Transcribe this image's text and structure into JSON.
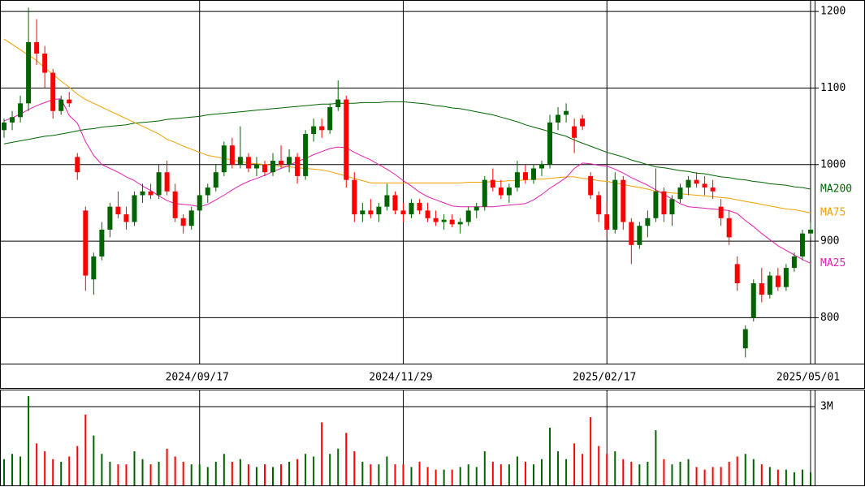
{
  "chart_data": [
    {
      "type": "candlestick",
      "categories": [
        null,
        null,
        null,
        null,
        null,
        null,
        null,
        null,
        null,
        null,
        null,
        null,
        null,
        null,
        null,
        null,
        null,
        null,
        null,
        null,
        null,
        null,
        null,
        null,
        "2024/09/17",
        null,
        null,
        null,
        null,
        null,
        null,
        null,
        null,
        null,
        null,
        null,
        null,
        null,
        null,
        null,
        null,
        null,
        null,
        null,
        null,
        null,
        null,
        null,
        null,
        "2024/11/29",
        null,
        null,
        null,
        null,
        null,
        null,
        null,
        null,
        null,
        null,
        null,
        null,
        null,
        null,
        null,
        null,
        null,
        null,
        null,
        null,
        null,
        null,
        null,
        null,
        "2025/02/17",
        null,
        null,
        null,
        null,
        null,
        null,
        null,
        null,
        null,
        null,
        null,
        null,
        null,
        null,
        null,
        null,
        null,
        null,
        null,
        null,
        null,
        null,
        null,
        null,
        "2025/05/01"
      ],
      "open": [
        1045,
        1055,
        1062,
        1080,
        1160,
        1145,
        1120,
        1070,
        1085,
        1010,
        940,
        850,
        880,
        915,
        945,
        935,
        925,
        960,
        965,
        960,
        990,
        965,
        930,
        920,
        940,
        960,
        970,
        990,
        1025,
        1000,
        1010,
        995,
        1000,
        990,
        1005,
        1000,
        1010,
        985,
        1040,
        1050,
        1045,
        1075,
        1085,
        980,
        935,
        940,
        935,
        945,
        960,
        940,
        935,
        950,
        940,
        930,
        925,
        928,
        922,
        925,
        940,
        945,
        980,
        970,
        960,
        970,
        990,
        980,
        995,
        1000,
        1055,
        1065,
        1050,
        1060,
        985,
        960,
        935,
        915,
        980,
        925,
        895,
        920,
        930,
        965,
        935,
        955,
        970,
        980,
        975,
        970,
        945,
        930,
        870,
        760,
        800,
        845,
        830,
        855,
        840,
        865,
        880,
        910
      ],
      "high": [
        1060,
        1070,
        1090,
        1205,
        1190,
        1155,
        1125,
        1090,
        1095,
        1015,
        945,
        885,
        925,
        950,
        965,
        945,
        965,
        975,
        975,
        1000,
        1005,
        975,
        935,
        945,
        965,
        975,
        1000,
        1030,
        1035,
        1050,
        1015,
        1010,
        1005,
        1015,
        1025,
        1020,
        1015,
        1045,
        1060,
        1060,
        1080,
        1110,
        1090,
        990,
        950,
        955,
        950,
        975,
        965,
        950,
        955,
        955,
        950,
        940,
        935,
        935,
        930,
        945,
        950,
        985,
        995,
        980,
        975,
        1005,
        1000,
        1000,
        1005,
        1065,
        1075,
        1080,
        1060,
        1065,
        990,
        965,
        950,
        990,
        985,
        930,
        925,
        940,
        995,
        970,
        960,
        975,
        985,
        990,
        985,
        980,
        955,
        940,
        880,
        790,
        850,
        865,
        860,
        865,
        870,
        885,
        915,
        925
      ],
      "low": [
        1035,
        1045,
        1055,
        1070,
        1130,
        1100,
        1060,
        1065,
        1075,
        980,
        835,
        830,
        875,
        905,
        930,
        915,
        920,
        950,
        955,
        955,
        960,
        925,
        910,
        915,
        935,
        950,
        965,
        985,
        995,
        995,
        990,
        985,
        985,
        985,
        995,
        990,
        975,
        980,
        1030,
        1035,
        1040,
        1070,
        970,
        925,
        925,
        930,
        925,
        940,
        935,
        925,
        930,
        935,
        925,
        920,
        915,
        918,
        910,
        920,
        930,
        940,
        965,
        955,
        950,
        965,
        975,
        975,
        985,
        995,
        1045,
        1055,
        1015,
        1045,
        955,
        925,
        905,
        910,
        915,
        870,
        890,
        905,
        925,
        925,
        920,
        950,
        960,
        970,
        960,
        955,
        920,
        895,
        835,
        748,
        795,
        820,
        825,
        835,
        835,
        860,
        875,
        905
      ],
      "close": [
        1055,
        1062,
        1080,
        1160,
        1145,
        1120,
        1070,
        1085,
        1080,
        990,
        855,
        880,
        915,
        945,
        935,
        925,
        960,
        965,
        960,
        990,
        965,
        930,
        920,
        940,
        960,
        970,
        990,
        1025,
        1000,
        1010,
        995,
        1000,
        990,
        1005,
        1000,
        1010,
        985,
        1040,
        1050,
        1045,
        1075,
        1085,
        980,
        935,
        940,
        935,
        945,
        960,
        940,
        935,
        950,
        940,
        930,
        925,
        928,
        922,
        925,
        940,
        945,
        980,
        970,
        960,
        970,
        990,
        980,
        995,
        1000,
        1055,
        1065,
        1070,
        1035,
        1050,
        960,
        935,
        915,
        980,
        925,
        895,
        920,
        930,
        965,
        935,
        955,
        970,
        980,
        975,
        970,
        965,
        930,
        905,
        845,
        785,
        845,
        830,
        855,
        840,
        865,
        880,
        910,
        915
      ],
      "series": [
        {
          "name": "MA200",
          "color": "#006400",
          "values": [
            1027,
            1029,
            1031,
            1033,
            1035,
            1037,
            1038,
            1040,
            1042,
            1044,
            1046,
            1047,
            1049,
            1050,
            1051,
            1052,
            1054,
            1055,
            1056,
            1057,
            1059,
            1060,
            1061,
            1062,
            1063,
            1065,
            1066,
            1067,
            1068,
            1069,
            1070,
            1071,
            1072,
            1073,
            1074,
            1075,
            1076,
            1077,
            1078,
            1079,
            1079,
            1080,
            1080,
            1080,
            1081,
            1081,
            1081,
            1082,
            1082,
            1082,
            1081,
            1080,
            1079,
            1077,
            1076,
            1074,
            1073,
            1071,
            1069,
            1067,
            1065,
            1062,
            1059,
            1056,
            1052,
            1049,
            1046,
            1043,
            1040,
            1037,
            1032,
            1028,
            1024,
            1020,
            1016,
            1013,
            1010,
            1006,
            1003,
            1000,
            997,
            996,
            994,
            992,
            991,
            989,
            988,
            986,
            984,
            983,
            981,
            980,
            978,
            977,
            975,
            974,
            973,
            971,
            970,
            968
          ]
        },
        {
          "name": "MA75",
          "color": "#f0a000",
          "values": [
            1164,
            1157,
            1150,
            1143,
            1136,
            1126,
            1118,
            1109,
            1101,
            1092,
            1085,
            1080,
            1075,
            1070,
            1065,
            1060,
            1055,
            1050,
            1045,
            1040,
            1033,
            1029,
            1024,
            1020,
            1016,
            1012,
            1010,
            1008,
            1006,
            1004,
            1002,
            1001,
            1000,
            999,
            998,
            997,
            996,
            995,
            994,
            993,
            991,
            988,
            985,
            982,
            979,
            976,
            976,
            976,
            976,
            976,
            976,
            976,
            976,
            976,
            976,
            976,
            976,
            977,
            977,
            977,
            978,
            978,
            979,
            979,
            980,
            981,
            981,
            982,
            983,
            984,
            984,
            982,
            981,
            979,
            978,
            976,
            974,
            972,
            970,
            968,
            965,
            964,
            963,
            962,
            961,
            960,
            959,
            958,
            957,
            956,
            954,
            952,
            950,
            948,
            946,
            944,
            942,
            941,
            939,
            937
          ]
        },
        {
          "name": "MA25",
          "color": "#e020b0",
          "values": [
            1057,
            1061,
            1066,
            1072,
            1077,
            1081,
            1085,
            1086,
            1064,
            1054,
            1030,
            1012,
            1000,
            995,
            990,
            984,
            979,
            972,
            966,
            959,
            953,
            949,
            948,
            947,
            945,
            948,
            954,
            960,
            967,
            973,
            978,
            982,
            986,
            991,
            995,
            999,
            1004,
            1008,
            1013,
            1017,
            1021,
            1023,
            1022,
            1016,
            1011,
            1006,
            1000,
            994,
            987,
            979,
            972,
            964,
            958,
            954,
            950,
            946,
            945,
            945,
            945,
            945,
            945,
            946,
            947,
            948,
            949,
            954,
            961,
            969,
            976,
            983,
            995,
            1002,
            1001,
            999,
            998,
            994,
            989,
            983,
            978,
            973,
            967,
            961,
            955,
            949,
            945,
            944,
            943,
            942,
            941,
            940,
            936,
            927,
            919,
            910,
            902,
            894,
            888,
            882,
            876,
            871
          ]
        }
      ],
      "ylim": [
        740,
        1215
      ],
      "yticks": [
        800,
        900,
        1000,
        1100,
        1200
      ],
      "up_color": "#006400",
      "down_color": "#ff0000",
      "grid": true
    },
    {
      "type": "bar",
      "values": [
        1.0,
        1.2,
        1.1,
        3.4,
        1.6,
        1.3,
        1.0,
        0.9,
        1.1,
        1.5,
        2.7,
        1.9,
        1.2,
        0.9,
        0.8,
        0.8,
        1.3,
        1.0,
        0.8,
        0.9,
        1.4,
        1.1,
        0.9,
        0.8,
        0.8,
        0.7,
        0.9,
        1.2,
        0.9,
        1.0,
        0.8,
        0.7,
        0.8,
        0.7,
        0.8,
        0.9,
        1.0,
        1.2,
        1.1,
        2.4,
        1.2,
        1.4,
        2.0,
        1.3,
        0.9,
        0.8,
        0.8,
        1.1,
        0.8,
        0.8,
        0.7,
        0.9,
        0.7,
        0.6,
        0.6,
        0.6,
        0.7,
        0.8,
        0.7,
        1.3,
        0.9,
        0.8,
        0.8,
        1.1,
        0.9,
        0.8,
        1.0,
        2.2,
        1.3,
        1.0,
        1.6,
        1.2,
        2.6,
        1.5,
        1.2,
        1.3,
        1.0,
        0.9,
        0.8,
        0.9,
        2.1,
        1.0,
        0.8,
        0.9,
        1.0,
        0.7,
        0.6,
        0.7,
        0.7,
        0.9,
        1.1,
        1.2,
        1.0,
        0.8,
        0.7,
        0.6,
        0.6,
        0.5,
        0.6,
        0.5
      ],
      "ylim": [
        0,
        3.65
      ],
      "yticks": [
        {
          "value": 3,
          "label": "3M"
        }
      ],
      "grid": true
    }
  ]
}
